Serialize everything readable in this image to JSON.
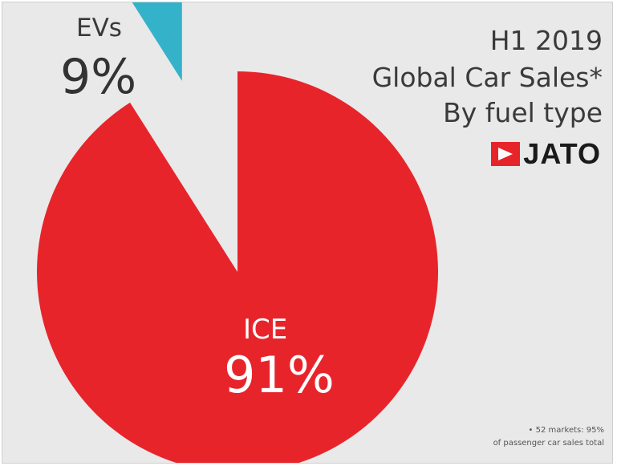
{
  "chart_data": {
    "type": "pie",
    "title_lines": [
      "H1 2019",
      "Global Car Sales*",
      "By fuel type"
    ],
    "slices": [
      {
        "label": "EVs",
        "value": 9,
        "display": "9%",
        "color": "#34b2c9",
        "exploded": true
      },
      {
        "label": "ICE",
        "value": 91,
        "display": "91%",
        "color": "#e8242b",
        "exploded": false
      }
    ]
  },
  "brand": {
    "logo_text": "JATO"
  },
  "footnote": {
    "line1": "•   52 markets: 95%",
    "line2": "of passenger car sales total"
  }
}
